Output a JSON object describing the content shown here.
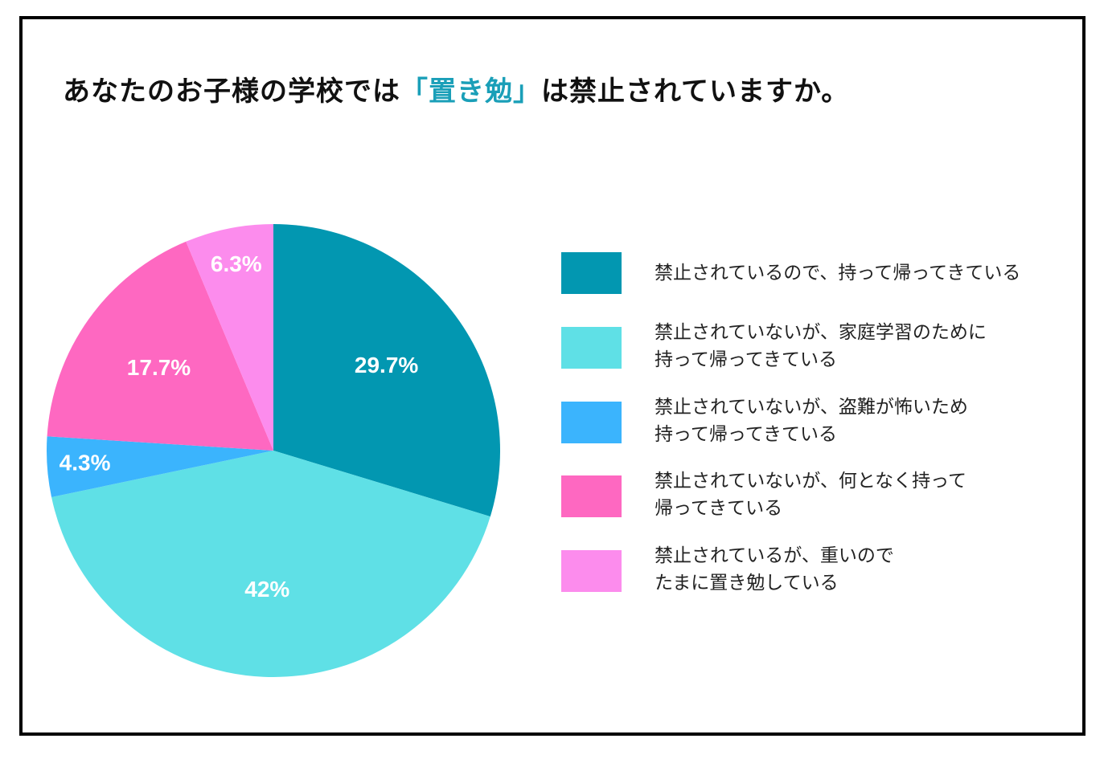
{
  "title": {
    "pre": "あなたのお子様の学校では",
    "highlight": "「置き勉」",
    "post": "は禁止されていますか。"
  },
  "colors": {
    "highlight": "#1a9fb8"
  },
  "chart_data": {
    "type": "pie",
    "title": "あなたのお子様の学校では「置き勉」は禁止されていますか。",
    "slices": [
      {
        "label": "禁止されているので、持って帰ってきている",
        "value": 29.7,
        "value_label": "29.7%",
        "color": "#0297b1"
      },
      {
        "label": "禁止されていないが、家庭学習のために\n持って帰ってきている",
        "value": 42,
        "value_label": "42%",
        "color": "#5fe0e6"
      },
      {
        "label": "禁止されていないが、盗難が怖いため\n持って帰ってきている",
        "value": 4.3,
        "value_label": "4.3%",
        "color": "#3bb4fd"
      },
      {
        "label": "禁止されていないが、何となく持って\n帰ってきている",
        "value": 17.7,
        "value_label": "17.7%",
        "color": "#fe68c1"
      },
      {
        "label": "禁止されているが、重いので\nたまに置き勉している",
        "value": 6.3,
        "value_label": "6.3%",
        "color": "#fc8ced"
      }
    ],
    "start": "12 o'clock",
    "direction": "clockwise",
    "legend": "right"
  }
}
